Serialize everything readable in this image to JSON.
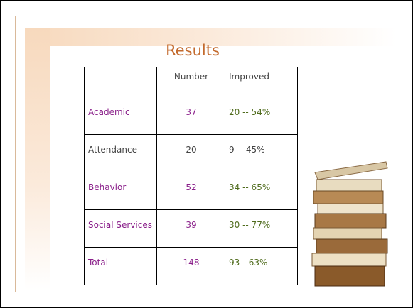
{
  "header": {
    "title": "Results"
  },
  "table": {
    "columns": [
      "Number",
      "Improved"
    ],
    "rows": [
      [
        "Academic",
        37,
        "20  -- 54%"
      ],
      [
        "Attendance",
        20,
        "9 -- 45%"
      ],
      [
        "Behavior",
        52,
        "34 -- 65%"
      ],
      [
        "Social Services",
        39,
        "30 -- 77%"
      ],
      [
        "Total",
        148,
        "93 --63%"
      ]
    ]
  }
}
